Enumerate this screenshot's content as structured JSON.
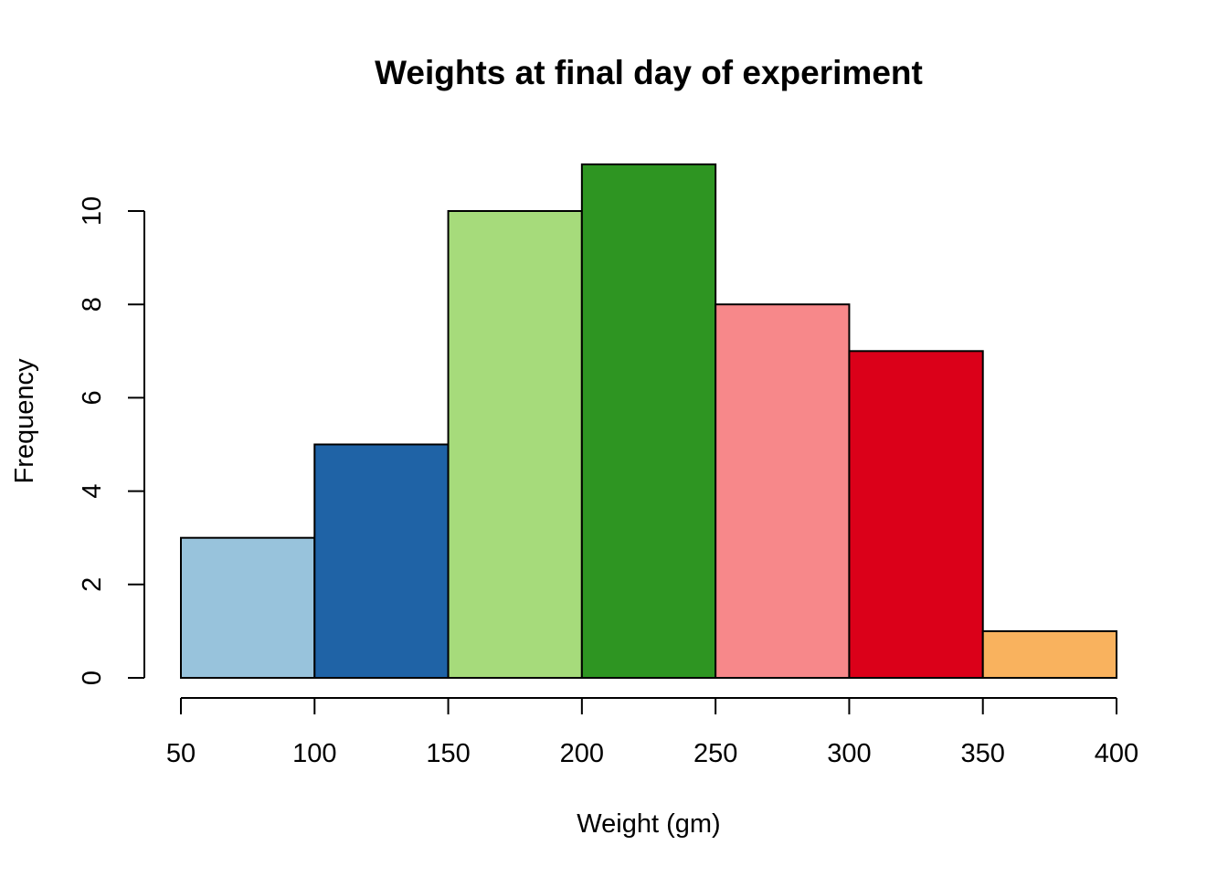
{
  "chart_data": {
    "type": "bar",
    "subtype": "histogram",
    "title": "Weights at final day of experiment",
    "xlabel": "Weight (gm)",
    "ylabel": "Frequency",
    "bins": [
      {
        "start": 50,
        "end": 100,
        "count": 3,
        "color": "#98C3DC"
      },
      {
        "start": 100,
        "end": 150,
        "count": 5,
        "color": "#1F63A6"
      },
      {
        "start": 150,
        "end": 200,
        "count": 10,
        "color": "#A6DB7B"
      },
      {
        "start": 200,
        "end": 250,
        "count": 11,
        "color": "#2E9522"
      },
      {
        "start": 250,
        "end": 300,
        "count": 8,
        "color": "#F7888A"
      },
      {
        "start": 300,
        "end": 350,
        "count": 7,
        "color": "#DB0019"
      },
      {
        "start": 350,
        "end": 400,
        "count": 1,
        "color": "#F9B25E"
      }
    ],
    "xlim": [
      50,
      400
    ],
    "ylim": [
      0,
      11
    ],
    "x_ticks": [
      50,
      100,
      150,
      200,
      250,
      300,
      350,
      400
    ],
    "y_ticks": [
      0,
      2,
      4,
      6,
      8,
      10
    ],
    "grid": false,
    "legend": "none"
  }
}
